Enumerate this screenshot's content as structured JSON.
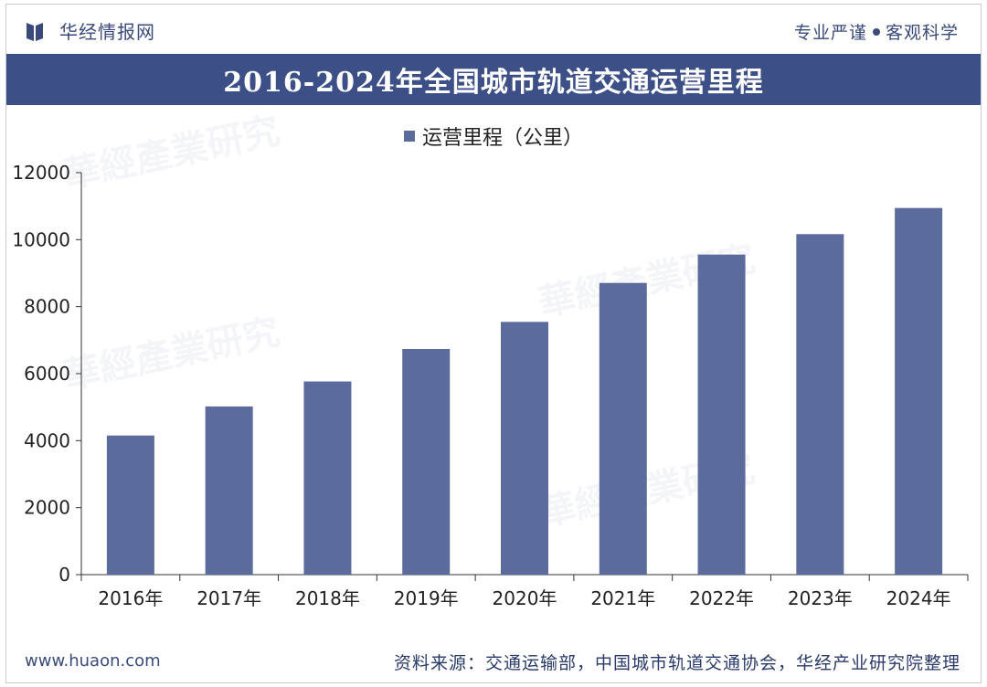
{
  "header": {
    "brand": "华经情报网",
    "slogan_left": "专业严谨",
    "slogan_right": "客观科学"
  },
  "chart_data": {
    "type": "bar",
    "title": "2016-2024年全国城市轨道交通运营里程",
    "categories": [
      "2016年",
      "2017年",
      "2018年",
      "2019年",
      "2020年",
      "2021年",
      "2022年",
      "2023年",
      "2024年"
    ],
    "series": [
      {
        "name": "运营里程（公里）",
        "values": [
          4153,
          5021,
          5767,
          6737,
          7545,
          8708,
          9555,
          10165,
          10945
        ]
      }
    ],
    "ylim": [
      0,
      12000
    ],
    "yticks": [
      0,
      2000,
      4000,
      6000,
      8000,
      10000,
      12000
    ],
    "bar_color": "#5b6b9c",
    "legend_position": "top-center",
    "grid": false
  },
  "footer": {
    "site": "www.huaon.com",
    "source": "资料来源：交通运输部，中国城市轨道交通协会，华经产业研究院整理"
  },
  "colors": {
    "title_bar": "#3d4f87",
    "brand_text": "#3a4a7a"
  }
}
